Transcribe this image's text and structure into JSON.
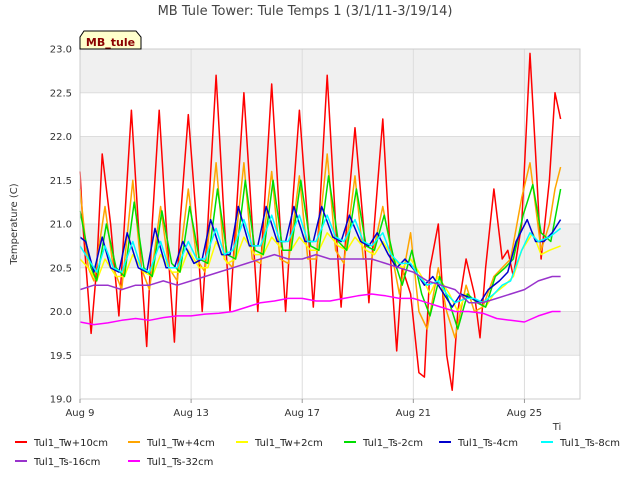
{
  "chart_data": {
    "type": "line",
    "title": "MB Tule Tower: Tule Temps 1 (3/1/11-3/19/14)",
    "xlabel": "",
    "ylabel": "Temperature (C)",
    "xlabel_corner": "Ti",
    "site_tag": "MB_tule",
    "x_unit": "days since Aug 9",
    "xlim": [
      0,
      18
    ],
    "ylim": [
      19.0,
      23.0
    ],
    "x_ticks": [
      {
        "value": 0,
        "label": "Aug 9"
      },
      {
        "value": 4,
        "label": "Aug 13"
      },
      {
        "value": 8,
        "label": "Aug 17"
      },
      {
        "value": 12,
        "label": "Aug 21"
      },
      {
        "value": 16,
        "label": "Aug 25"
      }
    ],
    "y_ticks": [
      {
        "value": 19.0,
        "label": "19.0"
      },
      {
        "value": 19.5,
        "label": "19.5"
      },
      {
        "value": 20.0,
        "label": "20.0"
      },
      {
        "value": 20.5,
        "label": "20.5"
      },
      {
        "value": 21.0,
        "label": "21.0"
      },
      {
        "value": 21.5,
        "label": "21.5"
      },
      {
        "value": 22.0,
        "label": "22.0"
      },
      {
        "value": 22.5,
        "label": "22.5"
      },
      {
        "value": 23.0,
        "label": "23.0"
      }
    ],
    "grid": true,
    "legend_position": "bottom",
    "x_end": 17.3,
    "series": [
      {
        "name": "Tul1_Tw+10cm",
        "color": "#ff0000",
        "x": [
          0.0,
          0.1,
          0.4,
          0.6,
          0.8,
          1.1,
          1.4,
          1.6,
          1.85,
          2.1,
          2.4,
          2.6,
          2.85,
          3.1,
          3.4,
          3.6,
          3.9,
          4.2,
          4.4,
          4.6,
          4.9,
          5.2,
          5.4,
          5.6,
          5.9,
          6.2,
          6.4,
          6.6,
          6.9,
          7.2,
          7.4,
          7.6,
          7.9,
          8.2,
          8.4,
          8.6,
          8.9,
          9.2,
          9.4,
          9.6,
          9.9,
          10.2,
          10.4,
          10.6,
          10.9,
          11.2,
          11.4,
          11.6,
          11.9,
          12.2,
          12.4,
          12.6,
          12.9,
          13.2,
          13.4,
          13.6,
          13.9,
          14.2,
          14.4,
          14.6,
          14.9,
          15.2,
          15.4,
          15.6,
          15.9,
          16.2,
          16.4,
          16.6,
          16.9,
          17.1,
          17.3
        ],
        "y": [
          21.6,
          21.0,
          19.75,
          20.5,
          21.8,
          21.0,
          19.95,
          21.0,
          22.3,
          21.0,
          19.6,
          21.0,
          22.3,
          21.0,
          19.65,
          21.0,
          22.25,
          21.0,
          20.0,
          21.0,
          22.7,
          21.0,
          20.0,
          21.0,
          22.5,
          21.0,
          20.0,
          21.0,
          22.6,
          21.0,
          20.0,
          21.0,
          22.3,
          21.0,
          20.05,
          21.0,
          22.7,
          21.0,
          20.05,
          21.0,
          22.1,
          21.0,
          20.1,
          21.0,
          22.2,
          20.5,
          19.55,
          20.5,
          20.2,
          19.3,
          19.25,
          20.5,
          21.0,
          19.5,
          19.1,
          20.0,
          20.6,
          20.2,
          19.7,
          20.5,
          21.4,
          20.6,
          20.7,
          20.4,
          21.0,
          22.95,
          21.8,
          20.6,
          21.5,
          22.5,
          22.2
        ]
      },
      {
        "name": "Tul1_Tw+4cm",
        "color": "#ffa500",
        "x": [
          0.0,
          0.3,
          0.5,
          0.9,
          1.2,
          1.5,
          1.9,
          2.2,
          2.5,
          2.9,
          3.2,
          3.5,
          3.9,
          4.2,
          4.5,
          4.9,
          5.2,
          5.5,
          5.9,
          6.2,
          6.5,
          6.9,
          7.2,
          7.5,
          7.9,
          8.2,
          8.5,
          8.9,
          9.2,
          9.5,
          9.9,
          10.2,
          10.5,
          10.9,
          11.2,
          11.5,
          11.9,
          12.2,
          12.5,
          12.9,
          13.2,
          13.5,
          13.9,
          14.2,
          14.5,
          14.9,
          15.2,
          15.5,
          15.9,
          16.2,
          16.4,
          16.6,
          16.9,
          17.1,
          17.3
        ],
        "y": [
          21.4,
          20.5,
          20.35,
          21.2,
          20.5,
          20.25,
          21.5,
          20.5,
          20.25,
          21.2,
          20.5,
          20.35,
          21.4,
          20.6,
          20.45,
          21.7,
          20.6,
          20.5,
          21.7,
          20.6,
          20.55,
          21.6,
          20.6,
          20.55,
          21.55,
          20.6,
          20.6,
          21.8,
          20.7,
          20.55,
          21.55,
          20.6,
          20.6,
          21.2,
          20.7,
          20.2,
          20.9,
          20.0,
          19.8,
          20.5,
          20.0,
          19.7,
          20.3,
          20.0,
          20.05,
          20.4,
          20.5,
          20.6,
          21.3,
          21.7,
          21.2,
          20.7,
          21.0,
          21.4,
          21.65
        ]
      },
      {
        "name": "Tul1_Tw+2cm",
        "color": "#ffff00",
        "x": [
          0.0,
          0.3,
          0.6,
          0.9,
          1.3,
          1.6,
          1.9,
          2.3,
          2.6,
          2.9,
          3.3,
          3.6,
          3.9,
          4.3,
          4.6,
          4.9,
          5.3,
          5.6,
          5.9,
          6.3,
          6.6,
          6.9,
          7.3,
          7.6,
          7.9,
          8.3,
          8.6,
          8.9,
          9.3,
          9.6,
          9.9,
          10.3,
          10.6,
          10.9,
          11.3,
          11.6,
          11.9,
          12.3,
          12.6,
          12.9,
          13.3,
          13.6,
          13.9,
          14.3,
          14.6,
          14.9,
          15.3,
          15.6,
          15.9,
          16.3,
          16.6,
          16.9,
          17.3
        ],
        "y": [
          20.6,
          20.5,
          20.35,
          20.6,
          20.4,
          20.4,
          20.65,
          20.45,
          20.4,
          20.65,
          20.45,
          20.45,
          20.7,
          20.5,
          20.5,
          20.8,
          20.55,
          20.6,
          20.85,
          20.65,
          20.65,
          20.85,
          20.7,
          20.7,
          20.85,
          20.7,
          20.7,
          20.9,
          20.75,
          20.7,
          20.85,
          20.7,
          20.65,
          20.8,
          20.6,
          20.5,
          20.6,
          20.4,
          20.2,
          20.4,
          20.2,
          20.0,
          20.2,
          20.1,
          20.05,
          20.2,
          20.3,
          20.4,
          20.7,
          20.9,
          20.65,
          20.7,
          20.75
        ]
      },
      {
        "name": "Tul1_Ts-2cm",
        "color": "#00dd00",
        "x": [
          0.0,
          0.4,
          0.6,
          0.95,
          1.3,
          1.6,
          1.95,
          2.3,
          2.6,
          2.95,
          3.3,
          3.6,
          3.95,
          4.3,
          4.6,
          4.95,
          5.3,
          5.6,
          5.95,
          6.3,
          6.6,
          6.95,
          7.3,
          7.6,
          7.95,
          8.3,
          8.6,
          8.95,
          9.3,
          9.6,
          9.95,
          10.3,
          10.6,
          10.95,
          11.3,
          11.6,
          11.95,
          12.3,
          12.6,
          12.95,
          13.3,
          13.6,
          13.95,
          14.3,
          14.6,
          14.95,
          15.3,
          15.6,
          15.95,
          16.3,
          16.6,
          16.95,
          17.3
        ],
        "y": [
          21.15,
          20.5,
          20.35,
          21.0,
          20.5,
          20.4,
          21.25,
          20.5,
          20.4,
          21.15,
          20.55,
          20.45,
          21.2,
          20.6,
          20.55,
          21.4,
          20.65,
          20.6,
          21.5,
          20.7,
          20.65,
          21.5,
          20.7,
          20.7,
          21.5,
          20.75,
          20.7,
          21.55,
          20.8,
          20.7,
          21.4,
          20.75,
          20.7,
          21.1,
          20.6,
          20.3,
          20.7,
          20.2,
          19.95,
          20.4,
          20.1,
          19.8,
          20.2,
          20.1,
          20.05,
          20.4,
          20.5,
          20.6,
          21.1,
          21.45,
          20.9,
          20.8,
          21.4
        ]
      },
      {
        "name": "Tul1_Ts-4cm",
        "color": "#0000cc",
        "x": [
          0.0,
          0.2,
          0.5,
          0.8,
          1.1,
          1.4,
          1.7,
          2.1,
          2.4,
          2.7,
          3.1,
          3.4,
          3.7,
          4.1,
          4.4,
          4.7,
          5.1,
          5.4,
          5.7,
          6.1,
          6.4,
          6.7,
          7.1,
          7.4,
          7.7,
          8.1,
          8.4,
          8.7,
          9.1,
          9.4,
          9.7,
          10.1,
          10.4,
          10.7,
          11.1,
          11.4,
          11.7,
          12.1,
          12.4,
          12.7,
          13.1,
          13.4,
          13.7,
          14.1,
          14.4,
          14.7,
          15.1,
          15.4,
          15.7,
          16.1,
          16.4,
          16.7,
          17.0,
          17.3
        ],
        "y": [
          20.85,
          20.8,
          20.45,
          20.85,
          20.5,
          20.45,
          20.9,
          20.5,
          20.45,
          20.95,
          20.5,
          20.5,
          20.8,
          20.55,
          20.6,
          21.05,
          20.65,
          20.65,
          21.2,
          20.75,
          20.75,
          21.2,
          20.8,
          20.8,
          21.2,
          20.8,
          20.8,
          21.2,
          20.85,
          20.8,
          21.1,
          20.8,
          20.75,
          20.9,
          20.65,
          20.5,
          20.6,
          20.45,
          20.3,
          20.4,
          20.2,
          20.05,
          20.2,
          20.15,
          20.1,
          20.25,
          20.35,
          20.45,
          20.8,
          21.05,
          20.8,
          20.8,
          20.9,
          21.05
        ]
      },
      {
        "name": "Tul1_Ts-8cm",
        "color": "#00ffff",
        "x": [
          0.0,
          0.3,
          0.6,
          0.9,
          1.2,
          1.5,
          1.9,
          2.2,
          2.5,
          2.9,
          3.2,
          3.5,
          3.9,
          4.2,
          4.5,
          4.9,
          5.2,
          5.5,
          5.9,
          6.2,
          6.5,
          6.9,
          7.2,
          7.5,
          7.9,
          8.2,
          8.5,
          8.9,
          9.2,
          9.5,
          9.9,
          10.2,
          10.5,
          10.9,
          11.2,
          11.5,
          11.9,
          12.2,
          12.5,
          12.9,
          13.2,
          13.5,
          13.9,
          14.2,
          14.5,
          14.9,
          15.2,
          15.5,
          15.9,
          16.2,
          16.5,
          16.9,
          17.3
        ],
        "y": [
          20.75,
          20.6,
          20.45,
          20.75,
          20.5,
          20.45,
          20.8,
          20.5,
          20.45,
          20.8,
          20.5,
          20.5,
          20.8,
          20.6,
          20.6,
          20.95,
          20.65,
          20.7,
          21.05,
          20.75,
          20.75,
          21.1,
          20.8,
          20.8,
          21.1,
          20.8,
          20.8,
          21.1,
          20.85,
          20.8,
          21.05,
          20.8,
          20.75,
          20.9,
          20.65,
          20.55,
          20.55,
          20.4,
          20.3,
          20.35,
          20.2,
          20.1,
          20.15,
          20.15,
          20.1,
          20.2,
          20.3,
          20.35,
          20.7,
          20.9,
          20.8,
          20.85,
          20.95
        ]
      },
      {
        "name": "Tul1_Ts-16cm",
        "color": "#9933cc",
        "x": [
          0.0,
          0.5,
          1.0,
          1.5,
          2.0,
          2.5,
          3.0,
          3.5,
          4.0,
          4.5,
          5.0,
          5.5,
          6.0,
          6.5,
          7.0,
          7.5,
          8.0,
          8.5,
          9.0,
          9.5,
          10.0,
          10.5,
          11.0,
          11.5,
          12.0,
          12.5,
          13.0,
          13.5,
          14.0,
          14.5,
          15.0,
          15.5,
          16.0,
          16.5,
          17.0,
          17.3
        ],
        "y": [
          20.25,
          20.3,
          20.3,
          20.25,
          20.3,
          20.3,
          20.35,
          20.3,
          20.35,
          20.4,
          20.45,
          20.5,
          20.55,
          20.6,
          20.65,
          20.6,
          20.6,
          20.65,
          20.6,
          20.6,
          20.6,
          20.6,
          20.55,
          20.5,
          20.45,
          20.35,
          20.3,
          20.25,
          20.1,
          20.1,
          20.15,
          20.2,
          20.25,
          20.35,
          20.4,
          20.4
        ]
      },
      {
        "name": "Tul1_Ts-32cm",
        "color": "#ff00ff",
        "x": [
          0.0,
          0.5,
          1.0,
          1.5,
          2.0,
          2.5,
          3.0,
          3.5,
          4.0,
          4.5,
          5.0,
          5.5,
          6.0,
          6.5,
          7.0,
          7.5,
          8.0,
          8.5,
          9.0,
          9.5,
          10.0,
          10.5,
          11.0,
          11.5,
          12.0,
          12.5,
          13.0,
          13.5,
          14.0,
          14.5,
          15.0,
          15.5,
          16.0,
          16.5,
          17.0,
          17.3
        ],
        "y": [
          19.88,
          19.85,
          19.87,
          19.9,
          19.92,
          19.9,
          19.93,
          19.95,
          19.95,
          19.97,
          19.98,
          20.0,
          20.05,
          20.1,
          20.12,
          20.15,
          20.15,
          20.12,
          20.12,
          20.15,
          20.18,
          20.2,
          20.18,
          20.15,
          20.15,
          20.1,
          20.05,
          20.0,
          20.0,
          19.98,
          19.92,
          19.9,
          19.88,
          19.95,
          20.0,
          20.0
        ]
      }
    ]
  }
}
